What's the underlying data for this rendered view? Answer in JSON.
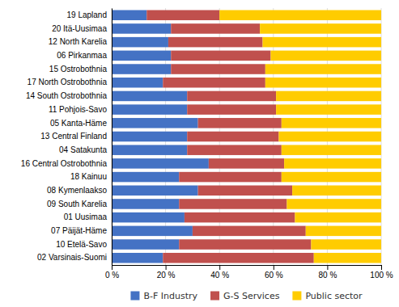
{
  "chart_data": {
    "type": "bar",
    "orientation": "horizontal",
    "stacked": true,
    "categories": [
      "19 Lapland",
      "20 Itä-Uusimaa",
      "12 North Karelia",
      "06 Pirkanmaa",
      "15 Ostrobothnia",
      "17 North Ostrobothnia",
      "14 South Ostrobothnia",
      "11 Pohjois-Savo",
      "05 Kanta-Häme",
      "13 Central Finland",
      "04 Satakunta",
      "16 Central Ostrobothnia",
      "18 Kainuu",
      "08 Kymenlaakso",
      "09 South Karelia",
      "01 Uusimaa",
      "07 Päijät-Häme",
      "10 Etelä-Savo",
      "02 Varsinais-Suomi"
    ],
    "series": [
      {
        "name": "B-F Industry",
        "color": "#4472c4",
        "values": [
          13,
          22,
          21,
          22,
          22,
          19,
          28,
          28,
          32,
          28,
          28,
          36,
          25,
          32,
          25,
          27,
          30,
          25,
          19
        ]
      },
      {
        "name": "G-S Services",
        "color": "#c0504d",
        "values": [
          27,
          33,
          35,
          37,
          35,
          38,
          33,
          33,
          31,
          34,
          35,
          28,
          38,
          35,
          40,
          41,
          42,
          49,
          56
        ]
      },
      {
        "name": "Public sector",
        "color": "#ffcc00",
        "values": [
          60,
          45,
          44,
          41,
          43,
          43,
          39,
          39,
          37,
          38,
          37,
          36,
          37,
          33,
          35,
          32,
          28,
          26,
          25
        ]
      }
    ],
    "xlim": [
      0,
      100
    ],
    "xticks": [
      {
        "value": 0,
        "label": "0 %"
      },
      {
        "value": 20,
        "label": "20 %"
      },
      {
        "value": 40,
        "label": "40 %"
      },
      {
        "value": 60,
        "label": "60 %"
      },
      {
        "value": 80,
        "label": "80 %"
      },
      {
        "value": 100,
        "label": "100 %"
      }
    ],
    "grid": true,
    "legend": "bottom"
  }
}
